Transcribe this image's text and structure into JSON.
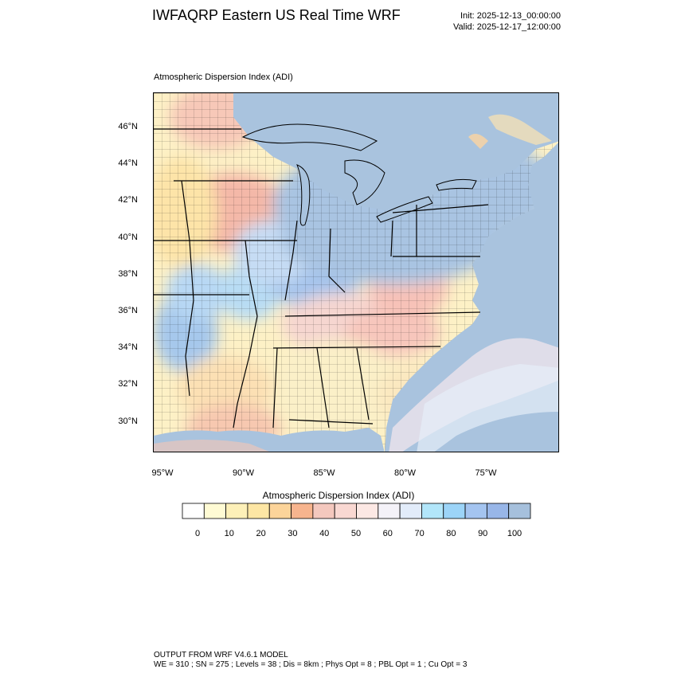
{
  "header": {
    "title": "IWFAQRP Eastern US Real Time WRF",
    "init": "Init: 2025-12-13_00:00:00",
    "valid": "Valid: 2025-12-17_12:00:00"
  },
  "plot": {
    "subtitle": "Atmospheric Dispersion Index   (ADI)",
    "lat_labels": [
      "46°N",
      "44°N",
      "42°N",
      "40°N",
      "38°N",
      "36°N",
      "34°N",
      "32°N",
      "30°N"
    ],
    "lon_labels": [
      "95°W",
      "90°W",
      "85°W",
      "80°W",
      "75°W"
    ]
  },
  "colorbar": {
    "title": "Atmospheric Dispersion Index  (ADI)",
    "tick_labels": [
      "0",
      "10",
      "20",
      "30",
      "40",
      "50",
      "60",
      "70",
      "80",
      "90",
      "100"
    ],
    "colors": [
      "#ffffff",
      "#fffbd4",
      "#fdf0b8",
      "#fde6a4",
      "#fcd49a",
      "#f7b48e",
      "#f4c8be",
      "#f9d8d2",
      "#fce8e4",
      "#f4f2f8",
      "#e2ecfa",
      "#b2e6fa",
      "#9cd4f8",
      "#a4c4f0",
      "#98b6e8",
      "#a6c0dc"
    ]
  },
  "footer": {
    "line1": "OUTPUT FROM WRF V4.6.1 MODEL",
    "line2": "WE = 310 ; SN = 275 ; Levels = 38 ; Dis = 8km ; Phys Opt = 8 ; PBL Opt = 1 ; Cu Opt = 3"
  }
}
